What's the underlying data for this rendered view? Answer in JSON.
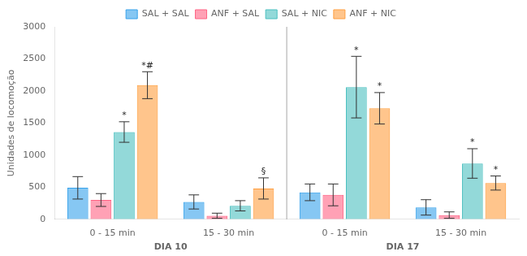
{
  "chart_data": {
    "type": "bar",
    "ylabel": "Unidades de locomoção",
    "categories": [
      "0 - 15 min",
      "15 - 30 min",
      "0 - 15 min",
      "15 - 30 min"
    ],
    "x_group_labels": [
      {
        "label": "DIA 10",
        "category_indices": [
          0,
          1
        ]
      },
      {
        "label": "DIA 17",
        "category_indices": [
          2,
          3
        ]
      }
    ],
    "series": [
      {
        "name": "SAL + SAL",
        "values": [
          490,
          270,
          420,
          185
        ],
        "errors": [
          175,
          110,
          130,
          120
        ]
      },
      {
        "name": "ANF + SAL",
        "values": [
          300,
          55,
          380,
          65
        ],
        "errors": [
          100,
          40,
          170,
          50
        ]
      },
      {
        "name": "SAL + NIC",
        "values": [
          1360,
          210,
          2060,
          870
        ],
        "errors": [
          160,
          80,
          480,
          230
        ]
      },
      {
        "name": "ANF + NIC",
        "values": [
          2090,
          480,
          1730,
          565
        ],
        "errors": [
          210,
          165,
          245,
          110
        ]
      }
    ],
    "annotations": [
      {
        "category_index": 0,
        "series_index": 2,
        "text": "*"
      },
      {
        "category_index": 0,
        "series_index": 3,
        "text": "*#"
      },
      {
        "category_index": 1,
        "series_index": 3,
        "text": "§"
      },
      {
        "category_index": 2,
        "series_index": 2,
        "text": "*"
      },
      {
        "category_index": 2,
        "series_index": 3,
        "text": "*"
      },
      {
        "category_index": 3,
        "series_index": 2,
        "text": "*"
      },
      {
        "category_index": 3,
        "series_index": 3,
        "text": "*"
      }
    ],
    "ylim": [
      0,
      3000
    ],
    "yticks": [
      0,
      500,
      1000,
      1500,
      2000,
      2500,
      3000
    ],
    "grid": false,
    "legend": "top"
  }
}
